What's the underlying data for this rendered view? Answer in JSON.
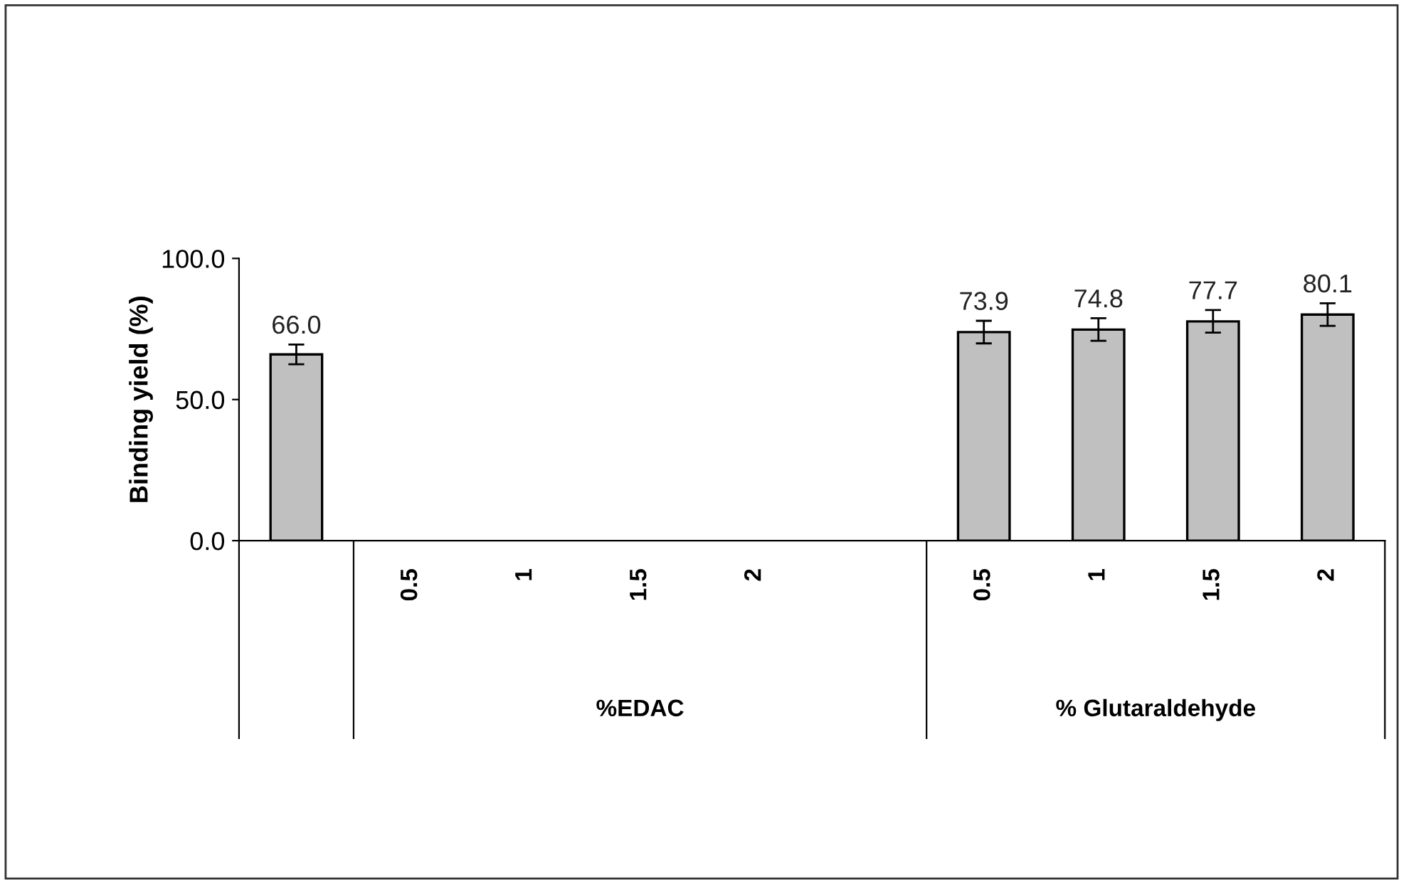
{
  "chart_data": {
    "type": "bar",
    "ylabel": "Binding yield (%)",
    "categories": [
      null,
      "0.5",
      "1",
      "1.5",
      "2",
      null,
      "0.5",
      "1",
      "1.5",
      "2"
    ],
    "values": [
      66.0,
      null,
      null,
      null,
      null,
      null,
      73.9,
      74.8,
      77.7,
      80.1
    ],
    "errors": [
      3.5,
      null,
      null,
      null,
      null,
      null,
      4,
      4,
      4,
      4
    ],
    "color": "#c0c0c0",
    "value_labels": [
      "66.0",
      null,
      null,
      null,
      null,
      null,
      "73.9",
      "74.8",
      "77.7",
      "80.1"
    ],
    "ylim": [
      0,
      100
    ],
    "yticks": [
      {
        "value": 0,
        "label": "0.0"
      },
      {
        "value": 50,
        "label": "50.0"
      },
      {
        "value": 100,
        "label": "100.0"
      }
    ],
    "grid": false,
    "annotations": [
      "%EDAC",
      "% Glutaraldehyde"
    ]
  }
}
